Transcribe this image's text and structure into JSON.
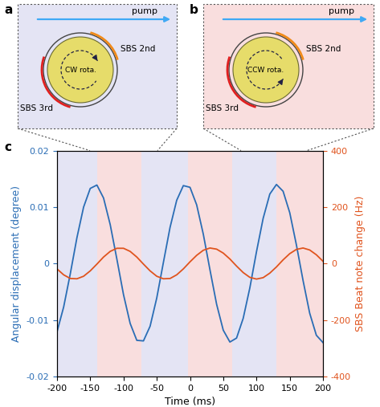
{
  "diagrams": [
    {
      "panel": "a",
      "pump": "pump",
      "rotation": "CW rota.",
      "sbs_second": "SBS 2nd",
      "sbs_third": "SBS 3rd",
      "color": "#e4e4f4"
    },
    {
      "panel": "b",
      "pump": "pump",
      "rotation": "CCW rota.",
      "sbs_second": "SBS 2nd",
      "sbs_third": "SBS 3rd",
      "color": "#f9dede"
    }
  ],
  "chart_data": {
    "panel": "c",
    "type": "line",
    "x": [
      -200,
      -190,
      -180,
      -170,
      -160,
      -150,
      -140,
      -130,
      -120,
      -110,
      -100,
      -90,
      -80,
      -70,
      -60,
      -50,
      -40,
      -30,
      -20,
      -10,
      0,
      10,
      20,
      30,
      40,
      50,
      60,
      70,
      80,
      90,
      100,
      110,
      120,
      130,
      140,
      150,
      160,
      170,
      180,
      190,
      200
    ],
    "xlabel": "Time (ms)",
    "xlim": [
      -200,
      200
    ],
    "xticks": [
      -200,
      -150,
      -100,
      -50,
      0,
      50,
      100,
      150,
      200
    ],
    "ylim": [
      -0.02,
      0.02
    ],
    "yticks": [
      -0.02,
      -0.01,
      0,
      0.01,
      0.02
    ],
    "y2lim": [
      -400,
      400
    ],
    "y2ticks": [
      -400,
      -200,
      0,
      200,
      400
    ],
    "series": [
      {
        "label": "Angular displacement (degree)",
        "color": "#2a6db5",
        "axis": "y",
        "values": [
          -0.0121,
          -0.0077,
          -0.0018,
          0.0046,
          0.01,
          0.0133,
          0.0139,
          0.0116,
          0.0069,
          0.0008,
          -0.0055,
          -0.0106,
          -0.0136,
          -0.0137,
          -0.0111,
          -0.0061,
          0.0002,
          0.0064,
          0.0112,
          0.0138,
          0.0135,
          0.0104,
          0.0052,
          -0.0011,
          -0.0072,
          -0.0118,
          -0.0139,
          -0.0132,
          -0.0097,
          -0.0043,
          0.0021,
          0.008,
          0.0123,
          0.014,
          0.0128,
          0.009,
          0.0033,
          -0.003,
          -0.0088,
          -0.0127,
          -0.014
        ]
      },
      {
        "label": "SBS Beat note change (Hz)",
        "color": "#e0541e",
        "axis": "y2",
        "values": [
          -19,
          -40,
          -53,
          -54,
          -45,
          -26,
          -2,
          23,
          43,
          54,
          54,
          43,
          23,
          -2,
          -26,
          -45,
          -54,
          -53,
          -40,
          -19,
          6,
          29,
          47,
          55,
          51,
          37,
          16,
          -9,
          -32,
          -49,
          -55,
          -50,
          -34,
          -12,
          13,
          35,
          50,
          55,
          48,
          31,
          8
        ]
      }
    ],
    "regions": [
      {
        "start": -200,
        "end": -140,
        "panel": "a"
      },
      {
        "start": -140,
        "end": -73,
        "panel": "b"
      },
      {
        "start": -73,
        "end": -3,
        "panel": "a"
      },
      {
        "start": -3,
        "end": 63,
        "panel": "b"
      },
      {
        "start": 63,
        "end": 130,
        "panel": "a"
      },
      {
        "start": 130,
        "end": 200,
        "panel": "b"
      }
    ]
  }
}
